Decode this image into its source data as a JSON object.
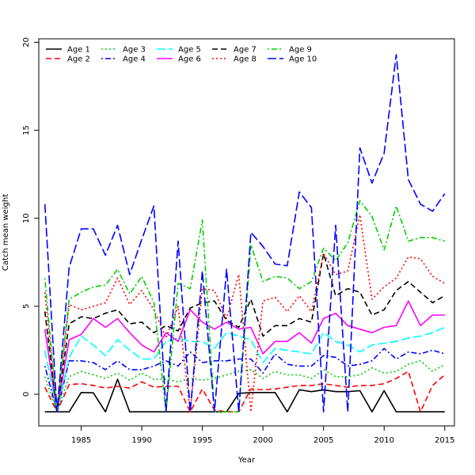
{
  "chart_data": {
    "type": "line",
    "title": "",
    "xlabel": "Year",
    "ylabel": "Catch mean weight",
    "xlim": [
      1981.5,
      2015.8
    ],
    "ylim": [
      -1.8,
      20.2
    ],
    "xticks": [
      1985,
      1990,
      1995,
      2000,
      2005,
      2010,
      2015
    ],
    "yticks": [
      0,
      5,
      10,
      15,
      20
    ],
    "grid": false,
    "legend_position": "top-left",
    "x": [
      1982,
      1983,
      1984,
      1985,
      1986,
      1987,
      1988,
      1989,
      1990,
      1991,
      1992,
      1993,
      1994,
      1995,
      1996,
      1997,
      1998,
      1999,
      2000,
      2001,
      2002,
      2003,
      2004,
      2005,
      2006,
      2007,
      2008,
      2009,
      2010,
      2011,
      2012,
      2013,
      2014,
      2015
    ],
    "series": [
      {
        "name": "Age 1",
        "color": "#000000",
        "dash": "solid",
        "values": [
          -1,
          -1,
          -1,
          0.1,
          0.08,
          -1,
          0.85,
          -1,
          -1,
          -1,
          -1,
          -1,
          -1,
          -1,
          -1,
          -1,
          0.05,
          0.1,
          0.1,
          0.1,
          -1,
          0.25,
          0.15,
          0.25,
          0.15,
          0.15,
          0.2,
          -1,
          0.2,
          -1,
          -1,
          -1,
          -1,
          -1
        ]
      },
      {
        "name": "Age 2",
        "color": "#ff0000",
        "dash": "dashed",
        "values": [
          0.4,
          -1,
          0.55,
          0.6,
          0.5,
          0.35,
          0.45,
          0.35,
          0.7,
          0.4,
          0.45,
          0.45,
          -1,
          0.3,
          -0.9,
          -1,
          -1,
          0.3,
          0.25,
          0.3,
          0.4,
          0.5,
          0.5,
          0.6,
          0.5,
          0.4,
          0.5,
          0.5,
          0.6,
          0.9,
          1.3,
          -1,
          0.5,
          1.1
        ]
      },
      {
        "name": "Age 3",
        "color": "#00cd00",
        "dash": "dotted",
        "values": [
          1.0,
          -1,
          1.0,
          1.3,
          1.1,
          0.9,
          1.2,
          0.8,
          1.2,
          0.85,
          0.85,
          0.7,
          0.9,
          0.8,
          0.9,
          1.1,
          1.3,
          1.4,
          0.9,
          1.3,
          1.1,
          1.1,
          0.9,
          1.4,
          1.0,
          1.0,
          1.1,
          1.5,
          1.2,
          1.3,
          1.7,
          1.9,
          1.3,
          1.7
        ]
      },
      {
        "name": "Age 4",
        "color": "#0000ff",
        "dash": "dotdash",
        "values": [
          1.6,
          -1,
          1.9,
          1.9,
          1.8,
          1.4,
          1.9,
          1.4,
          1.4,
          1.6,
          1.9,
          1.6,
          2.4,
          1.8,
          1.9,
          1.9,
          2.0,
          2.0,
          1.2,
          2.3,
          1.7,
          1.6,
          1.6,
          2.2,
          2.1,
          1.6,
          1.7,
          1.9,
          2.6,
          2.0,
          2.4,
          2.3,
          2.5,
          2.3
        ]
      },
      {
        "name": "Age 5",
        "color": "#00ffff",
        "dash": "longdash",
        "values": [
          2.5,
          -1,
          2.1,
          3.3,
          2.8,
          2.2,
          3.1,
          2.5,
          2.0,
          2.0,
          3.0,
          3.2,
          3.0,
          3.0,
          2.6,
          3.5,
          3.3,
          3.1,
          1.8,
          2.6,
          2.5,
          2.4,
          2.3,
          3.5,
          3.0,
          2.8,
          2.4,
          2.8,
          2.9,
          3.0,
          3.2,
          3.3,
          3.5,
          3.8
        ]
      },
      {
        "name": "Age 6",
        "color": "#ff00ff",
        "dash": "solid",
        "values": [
          3.7,
          -1,
          3.1,
          3.4,
          4.3,
          3.8,
          4.3,
          3.5,
          2.8,
          2.4,
          3.5,
          3.0,
          4.8,
          4.1,
          3.7,
          4.1,
          3.7,
          3.8,
          2.3,
          3.0,
          3.0,
          3.5,
          2.9,
          4.3,
          4.6,
          3.9,
          3.7,
          3.5,
          3.8,
          3.9,
          5.3,
          3.9,
          4.5,
          4.5
        ]
      },
      {
        "name": "Age 7",
        "color": "#000000",
        "dash": "dashed",
        "values": [
          4.7,
          -1,
          4.0,
          4.4,
          4.3,
          4.6,
          4.8,
          4.0,
          4.1,
          3.5,
          3.9,
          3.6,
          4.9,
          5.2,
          5.3,
          4.2,
          3.8,
          5.4,
          3.3,
          3.9,
          3.9,
          4.3,
          4.1,
          8.0,
          5.6,
          6.0,
          5.8,
          4.5,
          4.8,
          5.9,
          6.4,
          5.8,
          5.2,
          5.6
        ]
      },
      {
        "name": "Age 8",
        "color": "#ff0000",
        "dash": "dotted",
        "values": [
          5.8,
          -1,
          5.1,
          4.8,
          5.0,
          5.2,
          6.6,
          5.1,
          5.9,
          4.8,
          3.2,
          5.0,
          -1,
          6.0,
          5.9,
          4.3,
          6.8,
          -1,
          5.3,
          5.5,
          4.7,
          5.6,
          4.7,
          8.0,
          6.8,
          7.0,
          10.2,
          5.4,
          6.1,
          6.6,
          7.8,
          7.7,
          6.7,
          6.3
        ]
      },
      {
        "name": "Age 9",
        "color": "#00cd00",
        "dash": "dotdash",
        "values": [
          6.6,
          -1,
          5.4,
          5.8,
          6.1,
          6.2,
          7.1,
          5.7,
          6.7,
          5.2,
          -1,
          6.3,
          6.0,
          9.9,
          -1,
          -1,
          -1,
          8.5,
          6.4,
          6.7,
          6.6,
          6.0,
          6.4,
          8.3,
          7.6,
          8.6,
          11.0,
          10.1,
          8.2,
          10.7,
          8.7,
          8.9,
          8.9,
          8.7
        ]
      },
      {
        "name": "Age 10",
        "color": "#0000ff",
        "dash": "longdash",
        "values": [
          10.8,
          -1,
          7.2,
          9.4,
          9.4,
          7.9,
          9.6,
          6.8,
          8.8,
          10.7,
          -1,
          8.7,
          -1,
          7.0,
          -1,
          7.1,
          -1,
          9.2,
          8.4,
          7.4,
          7.3,
          11.5,
          10.6,
          -1,
          9.6,
          -1,
          14.0,
          12.0,
          13.7,
          19.3,
          12.2,
          10.8,
          10.4,
          11.4
        ]
      }
    ]
  }
}
